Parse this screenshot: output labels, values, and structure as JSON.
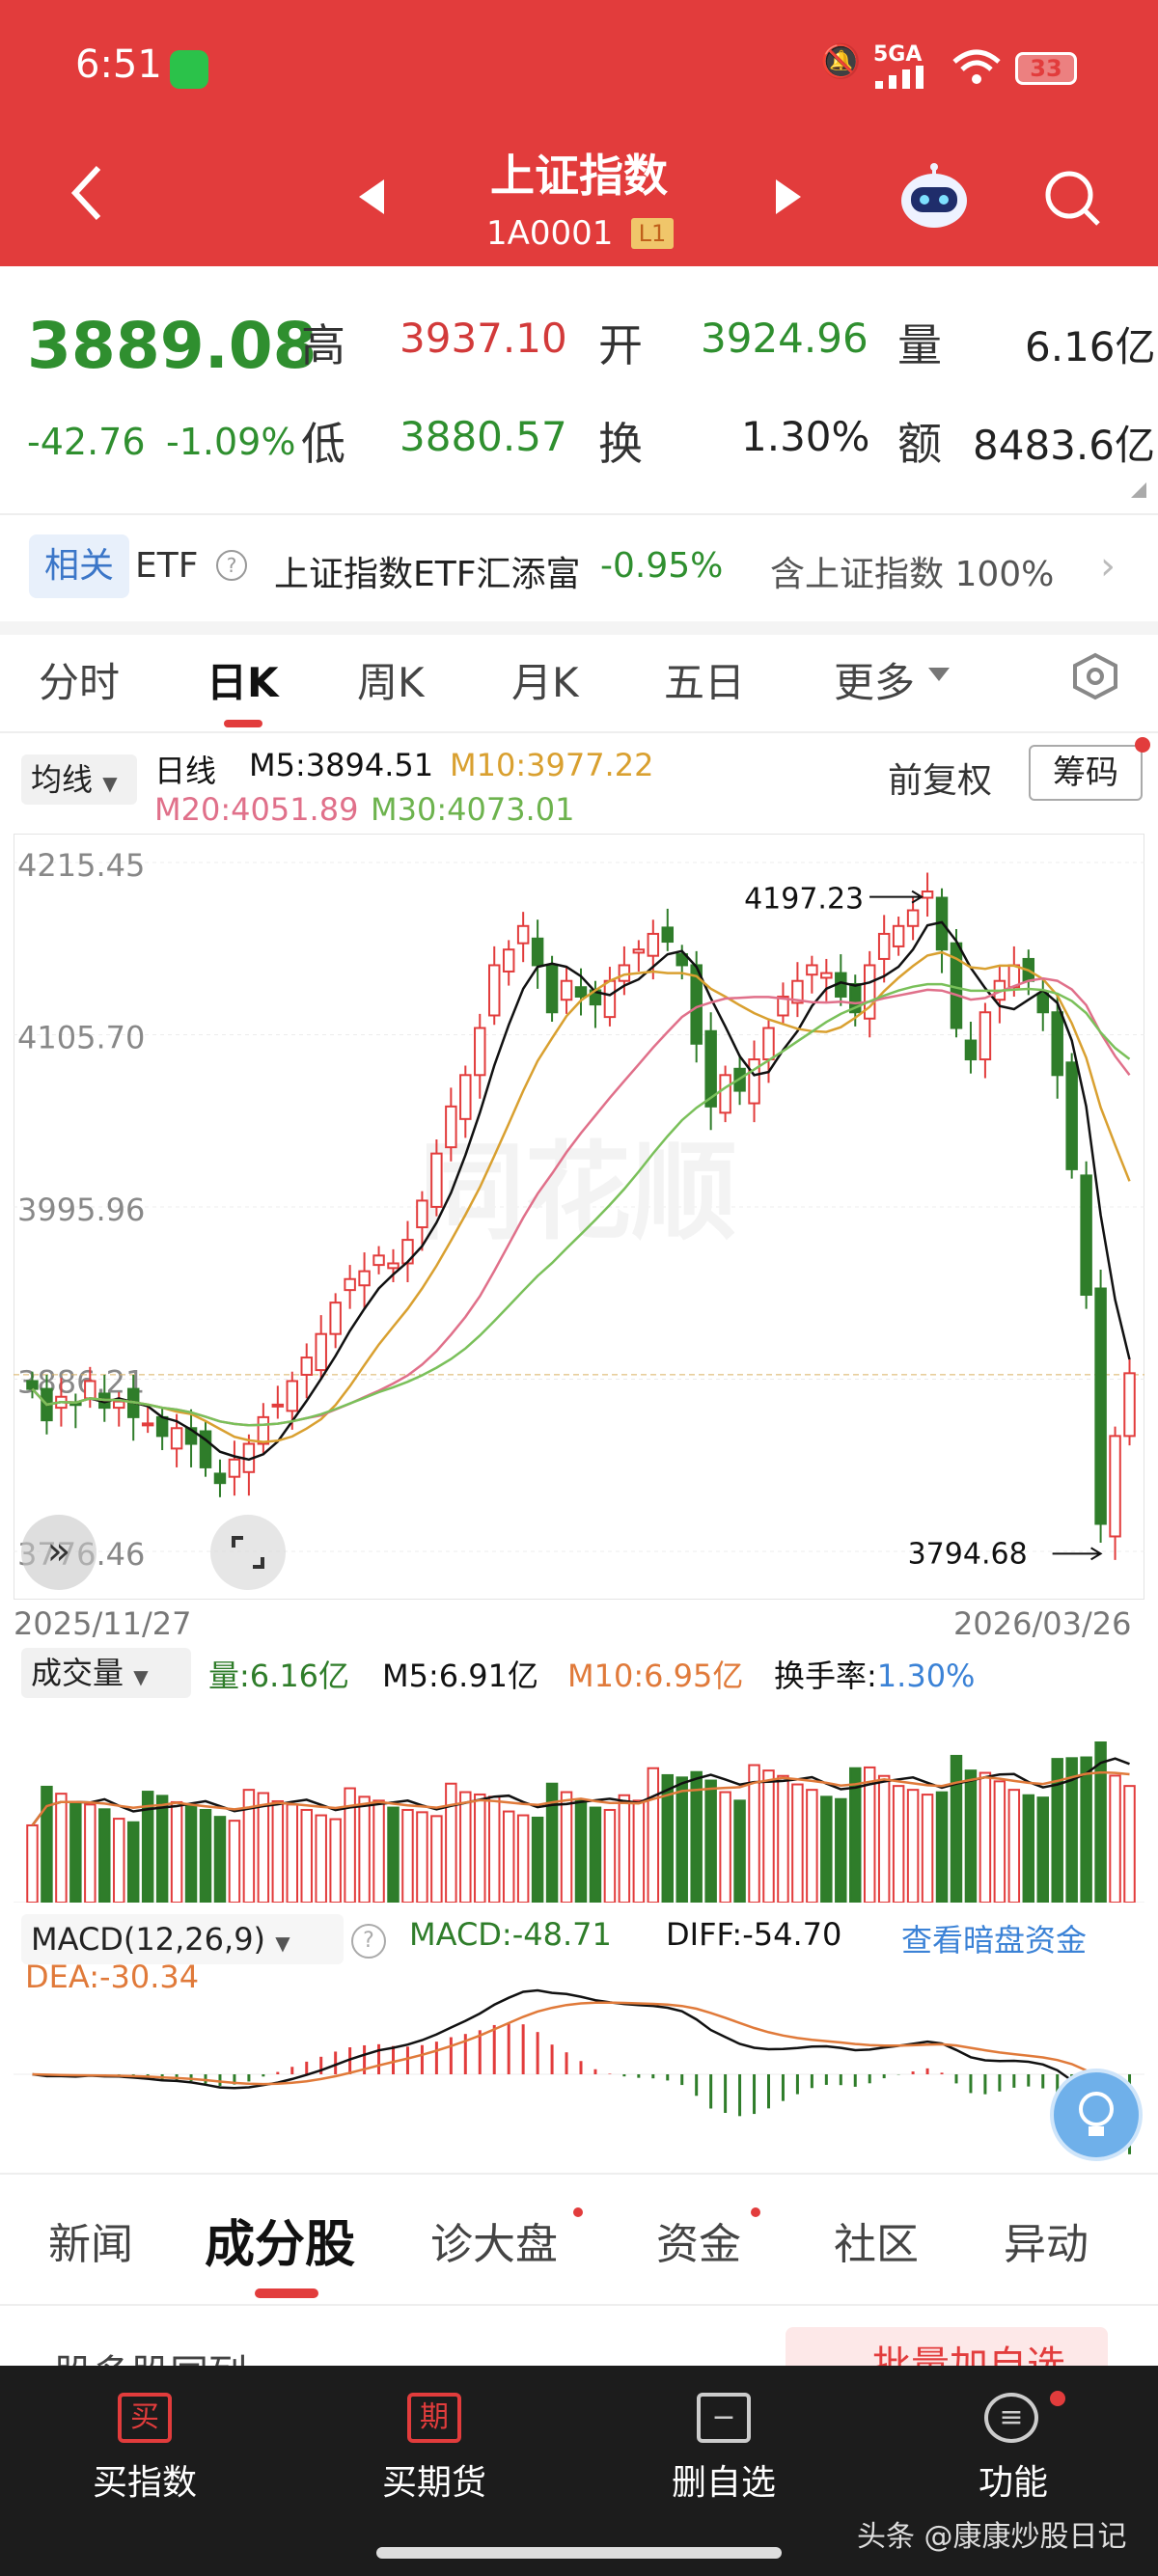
{
  "status_bar": {
    "time": "6:51",
    "network": "5GA",
    "battery": "33"
  },
  "nav": {
    "title": "上证指数",
    "code": "1A0001",
    "level": "L1"
  },
  "quote": {
    "price": "3889.08",
    "change": "-42.76",
    "change_pct": "-1.09%",
    "high_label": "高",
    "high": "3937.10",
    "open_label": "开",
    "open": "3924.96",
    "volume_label": "量",
    "volume": "6.16亿",
    "low_label": "低",
    "low": "3880.57",
    "turnover_label": "换",
    "turnover": "1.30%",
    "amount_label": "额",
    "amount": "8483.6亿"
  },
  "etf": {
    "tag": "相关",
    "name": "ETF",
    "fund": "上证指数ETF汇添富",
    "fund_change": "-0.95%",
    "holding": "含上证指数 100%"
  },
  "period_tabs": [
    "分时",
    "日K",
    "周K",
    "月K",
    "五日",
    "更多"
  ],
  "kline_legend": {
    "selector": "均线",
    "period": "日线",
    "m5": "M5:3894.51",
    "m10": "M10:3977.22",
    "m20": "M20:4051.89",
    "m30": "M30:4073.01",
    "adjust": "前复权",
    "chip": "筹码"
  },
  "colors": {
    "red": "#e23c3c",
    "green": "#2f7d2a",
    "m5": "#111111",
    "m10": "#d9a030",
    "m20": "#e0708a",
    "m30": "#7ac05a",
    "blue": "#3b82d6"
  },
  "axis": {
    "y_ticks": [
      "4215.45",
      "4105.70",
      "3995.96",
      "3886.21",
      "3776.46"
    ],
    "date_start": "2025/11/27",
    "date_end": "2026/03/26",
    "max_label": "4197.23",
    "min_label": "3794.68"
  },
  "volume_legend": {
    "selector": "成交量",
    "vol": "量:6.16亿",
    "m5": "M5:6.91亿",
    "m10": "M10:6.95亿",
    "turnover": "换手率:1.30%"
  },
  "macd_legend": {
    "selector": "MACD(12,26,9)",
    "macd": "MACD:-48.71",
    "diff": "DIFF:-54.70",
    "dea": "DEA:-30.34",
    "link": "查看暗盘资金"
  },
  "bottom_tabs": [
    "新闻",
    "成分股",
    "诊大盘",
    "资金",
    "社区",
    "异动"
  ],
  "sub_header": {
    "left": "股多股同列",
    "right": "批量加自选"
  },
  "toolbar": [
    {
      "icon": "买",
      "label": "买指数"
    },
    {
      "icon": "期",
      "label": "买期货"
    },
    {
      "icon": "−",
      "label": "删自选"
    },
    {
      "icon": "≡",
      "label": "功能"
    }
  ],
  "watermark": "头条 @康康炒股日记",
  "chart_data": [
    {
      "type": "candlestick",
      "title": "日K",
      "x_range": [
        "2025/11/27",
        "2026/03/26"
      ],
      "ylim": [
        3776.46,
        4215.45
      ],
      "y_ticks": [
        4215.45,
        4105.7,
        3995.96,
        3886.21,
        3776.46
      ],
      "annotations": [
        {
          "label": "4197.23",
          "kind": "max"
        },
        {
          "label": "3794.68",
          "kind": "min"
        }
      ],
      "closes": [
        3880,
        3860,
        3875,
        3870,
        3885,
        3868,
        3872,
        3862,
        3858,
        3850,
        3855,
        3845,
        3830,
        3820,
        3835,
        3845,
        3862,
        3870,
        3885,
        3900,
        3915,
        3935,
        3950,
        3955,
        3965,
        3960,
        3975,
        4000,
        4030,
        4060,
        4080,
        4110,
        4150,
        4160,
        4175,
        4150,
        4120,
        4140,
        4130,
        4125,
        4140,
        4150,
        4160,
        4170,
        4165,
        4150,
        4100,
        4060,
        4080,
        4070,
        4090,
        4110,
        4130,
        4140,
        4150,
        4145,
        4130,
        4120,
        4150,
        4170,
        4175,
        4185,
        4197,
        4160,
        4110,
        4090,
        4120,
        4140,
        4150,
        4140,
        4120,
        4080,
        4020,
        3940,
        3794,
        3850,
        3890
      ],
      "series": [
        {
          "name": "M5",
          "last": "3894.51"
        },
        {
          "name": "M10",
          "last": "3977.22"
        },
        {
          "name": "M20",
          "last": "4051.89"
        },
        {
          "name": "M30",
          "last": "4073.01"
        }
      ]
    },
    {
      "type": "bar",
      "title": "成交量",
      "unit": "亿",
      "latest": 6.16,
      "m5": 6.91,
      "m10": 6.95,
      "turnover": "1.30%"
    },
    {
      "type": "bar",
      "title": "MACD(12,26,9)",
      "macd": -48.71,
      "diff": -54.7,
      "dea": -30.34
    }
  ]
}
